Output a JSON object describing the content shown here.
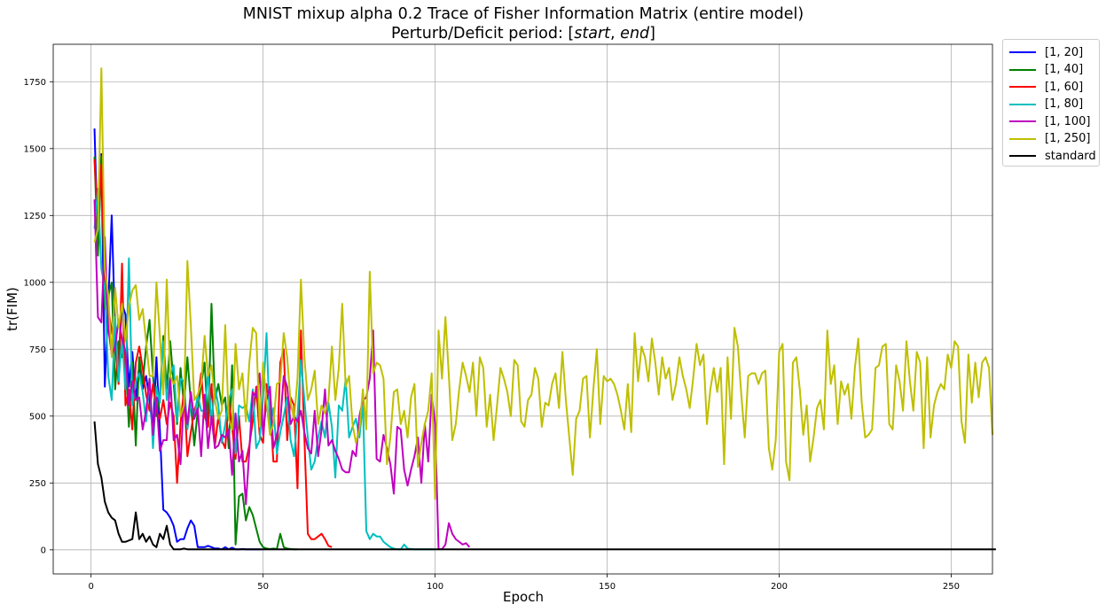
{
  "chart_data": {
    "type": "line",
    "title": "MNIST mixup alpha 0.2 Trace of Fisher Information Matrix (entire model)",
    "subtitle_prefix": "Perturb/Deficit period: [",
    "subtitle_start": "start",
    "subtitle_sep": ", ",
    "subtitle_end": "end",
    "subtitle_suffix": "]",
    "xlabel": "Epoch",
    "ylabel": "tr(FIM)",
    "xlim": [
      -11,
      262
    ],
    "ylim": [
      -90,
      1890
    ],
    "xticks": [
      0,
      50,
      100,
      150,
      200,
      250
    ],
    "yticks": [
      0,
      250,
      500,
      750,
      1000,
      1250,
      1500,
      1750
    ],
    "grid": true,
    "legend_position": "outside-top-right",
    "series": [
      {
        "name": "[1, 20]",
        "color": "#0000ff",
        "x_start": 1,
        "values": [
          1575,
          1120,
          1480,
          610,
          920,
          1250,
          820,
          700,
          920,
          880,
          610,
          740,
          560,
          690,
          600,
          650,
          560,
          440,
          720,
          450,
          150,
          140,
          120,
          90,
          30,
          40,
          40,
          80,
          110,
          90,
          10,
          10,
          10,
          15,
          10,
          5,
          5,
          2,
          10,
          2,
          8,
          2,
          2,
          3,
          2,
          2,
          2,
          2,
          2,
          2
        ]
      },
      {
        "name": "[1, 40]",
        "color": "#008000",
        "x_start": 1,
        "values": [
          1470,
          1100,
          1470,
          900,
          950,
          1000,
          600,
          780,
          720,
          720,
          460,
          700,
          390,
          720,
          620,
          760,
          860,
          650,
          500,
          570,
          800,
          600,
          780,
          620,
          470,
          680,
          540,
          720,
          550,
          390,
          520,
          620,
          700,
          460,
          920,
          560,
          620,
          540,
          570,
          380,
          690,
          20,
          200,
          210,
          110,
          160,
          130,
          80,
          30,
          10,
          5,
          3,
          5,
          3,
          60,
          10,
          5,
          3,
          2,
          2
        ]
      },
      {
        "name": "[1, 60]",
        "color": "#ff0000",
        "x_start": 1,
        "values": [
          1460,
          1200,
          1440,
          1000,
          900,
          820,
          760,
          620,
          1070,
          540,
          600,
          450,
          700,
          760,
          680,
          580,
          520,
          620,
          520,
          490,
          560,
          470,
          550,
          500,
          250,
          470,
          600,
          350,
          440,
          520,
          560,
          660,
          500,
          460,
          620,
          390,
          500,
          410,
          380,
          560,
          460,
          340,
          500,
          330,
          330,
          390,
          480,
          610,
          430,
          400,
          620,
          540,
          330,
          330,
          700,
          750,
          410,
          570,
          540,
          230,
          820,
          420,
          60,
          40,
          40,
          50,
          60,
          40,
          15,
          10
        ]
      },
      {
        "name": "[1, 80]",
        "color": "#00bfbf",
        "x_start": 1,
        "values": [
          1200,
          1350,
          1050,
          980,
          650,
          560,
          870,
          630,
          790,
          600,
          1090,
          540,
          630,
          660,
          590,
          480,
          640,
          380,
          610,
          550,
          780,
          560,
          650,
          690,
          480,
          640,
          630,
          450,
          550,
          490,
          580,
          520,
          520,
          660,
          480,
          610,
          540,
          400,
          470,
          560,
          600,
          360,
          540,
          530,
          540,
          480,
          600,
          380,
          410,
          570,
          810,
          450,
          530,
          360,
          440,
          500,
          570,
          410,
          350,
          500,
          710,
          560,
          420,
          300,
          330,
          420,
          480,
          420,
          550,
          460,
          270,
          540,
          520,
          640,
          420,
          460,
          490,
          420,
          550,
          70,
          40,
          60,
          50,
          50,
          30,
          20,
          10,
          5,
          2,
          2,
          20,
          5,
          3,
          2,
          2,
          2,
          2,
          2,
          2,
          2
        ]
      },
      {
        "name": "[1, 100]",
        "color": "#bf00bf",
        "x_start": 1,
        "values": [
          1310,
          870,
          850,
          1170,
          830,
          730,
          760,
          860,
          790,
          740,
          540,
          630,
          560,
          570,
          450,
          520,
          640,
          430,
          570,
          370,
          410,
          410,
          650,
          410,
          430,
          320,
          570,
          470,
          590,
          490,
          530,
          350,
          580,
          380,
          500,
          380,
          390,
          430,
          420,
          450,
          280,
          510,
          330,
          370,
          170,
          370,
          590,
          570,
          660,
          430,
          560,
          610,
          380,
          430,
          480,
          650,
          610,
          470,
          500,
          480,
          520,
          440,
          380,
          360,
          520,
          350,
          450,
          600,
          390,
          410,
          370,
          340,
          300,
          290,
          290,
          370,
          350,
          500,
          560,
          570,
          640,
          820,
          340,
          330,
          430,
          380,
          320,
          210,
          460,
          450,
          300,
          240,
          300,
          350,
          420,
          250,
          470,
          330,
          580,
          470,
          5,
          2,
          20,
          100,
          60,
          40,
          30,
          20,
          25,
          10
        ]
      },
      {
        "name": "[1, 250]",
        "color": "#bfbf00",
        "x_start": 1,
        "values": [
          1150,
          1200,
          1800,
          1050,
          950,
          720,
          980,
          830,
          920,
          780,
          910,
          970,
          990,
          860,
          900,
          780,
          650,
          650,
          1000,
          800,
          580,
          1010,
          650,
          620,
          650,
          500,
          540,
          1080,
          840,
          560,
          580,
          620,
          800,
          650,
          690,
          560,
          490,
          520,
          840,
          490,
          450,
          770,
          600,
          660,
          480,
          700,
          830,
          810,
          460,
          700,
          550,
          430,
          470,
          620,
          630,
          810,
          720,
          550,
          490,
          640,
          1010,
          720,
          560,
          600,
          670,
          470,
          540,
          510,
          560,
          760,
          560,
          680,
          920,
          610,
          650,
          470,
          400,
          450,
          600,
          450,
          1040,
          660,
          700,
          690,
          640,
          320,
          420,
          590,
          600,
          470,
          520,
          420,
          570,
          620,
          310,
          400,
          470,
          520,
          660,
          190,
          820,
          640,
          870,
          650,
          410,
          470,
          600,
          700,
          650,
          590,
          700,
          500,
          720,
          680,
          460,
          580,
          410,
          540,
          680,
          640,
          590,
          500,
          710,
          690,
          480,
          460,
          560,
          580,
          680,
          640,
          460,
          550,
          540,
          620,
          660,
          530,
          740,
          560,
          420,
          280,
          490,
          520,
          640,
          650,
          420,
          600,
          750,
          470,
          650,
          630,
          640,
          620,
          580,
          520,
          450,
          620,
          440,
          810,
          630,
          760,
          720,
          630,
          790,
          700,
          580,
          720,
          640,
          680,
          560,
          620,
          720,
          650,
          600,
          530,
          640,
          770,
          690,
          730,
          470,
          600,
          680,
          590,
          680,
          320,
          720,
          490,
          830,
          760,
          580,
          420,
          650,
          660,
          660,
          620,
          660,
          670,
          380,
          300,
          410,
          740,
          770,
          330,
          260,
          700,
          720,
          600,
          430,
          540,
          330,
          420,
          530,
          560,
          450,
          820,
          620,
          690,
          470,
          630,
          580,
          620,
          490,
          680,
          790,
          550,
          420,
          430,
          450,
          680,
          690,
          760,
          770,
          470,
          450,
          690,
          630,
          520,
          780,
          630,
          520,
          740,
          700,
          380,
          720,
          420,
          540,
          590,
          620,
          600,
          730,
          680,
          780,
          760,
          480,
          400,
          730,
          550,
          700,
          570,
          700,
          720,
          680,
          430
        ]
      },
      {
        "name": "standard",
        "color": "#000000",
        "x_start": 1,
        "values": [
          480,
          320,
          270,
          180,
          140,
          120,
          110,
          60,
          30,
          30,
          35,
          40,
          140,
          40,
          60,
          30,
          50,
          20,
          10,
          60,
          40,
          90,
          20,
          2,
          2,
          2,
          5,
          2,
          2,
          2,
          2,
          2,
          2,
          2,
          2,
          2,
          2,
          2,
          2,
          2,
          2,
          2,
          2,
          2,
          2,
          2,
          2,
          2,
          2,
          2,
          2,
          2,
          2,
          2,
          2,
          2,
          2,
          2,
          2,
          2,
          2,
          2,
          2,
          2,
          2,
          2,
          2,
          2,
          2,
          2,
          2,
          2,
          2,
          2,
          2,
          2,
          2,
          2,
          2,
          2,
          2,
          2,
          2,
          2,
          2,
          2,
          2,
          2,
          2,
          2,
          2,
          2,
          2,
          2,
          2,
          2,
          2,
          2,
          2,
          2,
          2,
          2,
          2,
          2,
          2,
          2,
          2,
          2,
          2,
          2,
          2,
          2,
          2,
          2,
          2,
          2,
          2,
          2,
          2,
          2,
          2,
          2,
          2,
          2,
          2,
          2,
          2,
          2,
          2,
          2,
          2,
          2,
          2,
          2,
          2,
          2,
          2,
          2,
          2,
          2,
          2,
          2,
          2,
          2,
          2,
          2,
          2,
          2,
          2,
          2,
          2,
          2,
          2,
          2,
          2,
          2,
          2,
          2,
          2,
          2,
          2,
          2,
          2,
          2,
          2,
          2,
          2,
          2,
          2,
          2,
          2,
          2,
          2,
          2,
          2,
          2,
          2,
          2,
          2,
          2,
          2,
          2,
          2,
          2,
          2,
          2,
          2,
          2,
          2,
          2,
          2,
          2,
          2,
          2,
          2,
          2,
          2,
          2,
          2,
          2,
          2,
          2,
          2,
          2,
          2,
          2,
          2,
          2,
          2,
          2,
          2,
          2,
          2,
          2,
          2,
          2,
          2,
          2,
          2,
          2,
          2,
          2,
          2,
          2,
          2,
          2,
          2,
          2,
          2,
          2,
          2,
          2,
          2,
          2,
          2,
          2,
          2,
          2,
          2,
          2,
          2,
          2,
          2,
          2,
          2,
          2,
          2,
          2,
          2,
          2,
          2,
          2,
          2,
          2,
          2,
          2,
          2,
          2,
          2,
          2,
          2,
          2,
          2
        ]
      }
    ]
  }
}
